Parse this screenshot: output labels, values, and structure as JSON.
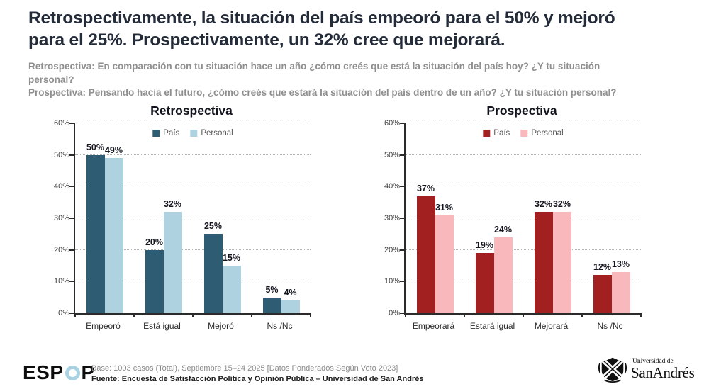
{
  "header": {
    "title_lines": [
      "Retrospectivamente, la situación del país empeoró para el 50% y mejoró",
      "para el 25%. Prospectivamente, un 32% cree que mejorará."
    ],
    "subtitle_lines": [
      "Retrospectiva: En comparación con tu situación hace un año ¿cómo creés que está la situación del país hoy? ¿Y tu situación",
      "personal?",
      "Prospectiva: Pensando hacia el futuro, ¿cómo creés que estará la situación del país dentro de un año? ¿Y tu situación personal?"
    ]
  },
  "chart_data": [
    {
      "type": "bar",
      "title": "Retrospectiva",
      "categories": [
        "Empeoró",
        "Está igual",
        "Mejoró",
        "Ns /Nc"
      ],
      "series": [
        {
          "name": "País",
          "color": "#2e5d73",
          "values": [
            50,
            20,
            25,
            5
          ]
        },
        {
          "name": "Personal",
          "color": "#aed2e0",
          "values": [
            49,
            32,
            15,
            4
          ]
        }
      ],
      "ylim": [
        0,
        60
      ],
      "ytick_step": 10,
      "ytick_suffix": "%",
      "value_label_suffix": "%",
      "grid": "dotted",
      "legend_position": "top-center"
    },
    {
      "type": "bar",
      "title": "Prospectiva",
      "categories": [
        "Empeorará",
        "Estará igual",
        "Mejorará",
        "Ns /Nc"
      ],
      "series": [
        {
          "name": "País",
          "color": "#a32020",
          "values": [
            37,
            19,
            32,
            12
          ]
        },
        {
          "name": "Personal",
          "color": "#f9b8bc",
          "values": [
            31,
            24,
            32,
            13
          ]
        }
      ],
      "ylim": [
        0,
        60
      ],
      "ytick_step": 10,
      "ytick_suffix": "%",
      "value_label_suffix": "%",
      "grid": "dotted",
      "legend_position": "top-center"
    }
  ],
  "footer": {
    "espop_left": "ESP",
    "espop_right": "P",
    "espop_o_color": "#a9d3e3",
    "base_line": "Base: 1003 casos (Total), Septiembre 15–24 2025 [Datos Ponderados Según Voto 2023]",
    "fuente_line": "Fuente: Encuesta de Satisfacción Política y Opinión Pública – Universidad de San Andrés",
    "university_small": "Universidad de",
    "university_large": "SanAndrés"
  }
}
